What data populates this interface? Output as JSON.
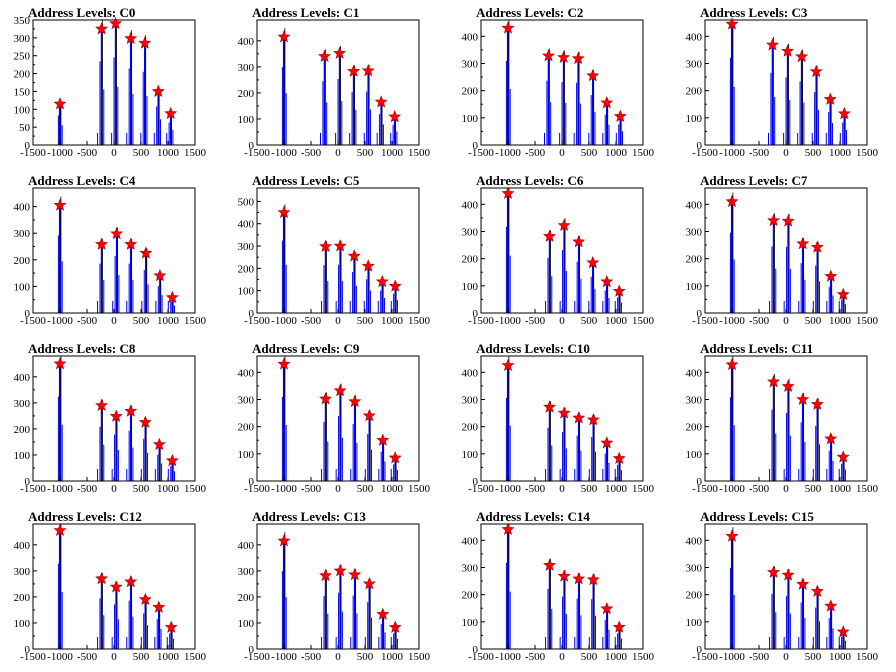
{
  "colors": {
    "histogram": "#0000ff",
    "raw": "#000000",
    "peak_marker": "#ff0000",
    "frame": "#000000"
  },
  "chart_data": [
    {
      "type": "bar",
      "title": "Address Levels: C0",
      "xlim": [
        -1500,
        1500
      ],
      "ylim": [
        0,
        350
      ],
      "yticks": [
        0,
        50,
        100,
        150,
        200,
        250,
        300,
        350
      ],
      "xticks": [
        -1500,
        -1000,
        -500,
        0,
        500,
        1000,
        1500
      ],
      "xticklabels": [
        "-1500",
        "-1000",
        "-500",
        "0",
        "500",
        "1000",
        "1500"
      ],
      "peaks": [
        {
          "x": -1000,
          "y": 115
        },
        {
          "x": -230,
          "y": 325
        },
        {
          "x": 30,
          "y": 340
        },
        {
          "x": 310,
          "y": 298
        },
        {
          "x": 570,
          "y": 285
        },
        {
          "x": 820,
          "y": 150
        },
        {
          "x": 1050,
          "y": 88
        }
      ]
    },
    {
      "type": "bar",
      "title": "Address Levels: C1",
      "xlim": [
        -1500,
        1500
      ],
      "ylim": [
        0,
        480
      ],
      "yticks": [
        0,
        100,
        200,
        300,
        400
      ],
      "xticks": [
        -1500,
        -1000,
        -500,
        0,
        500,
        1000,
        1500
      ],
      "xticklabels": [
        "-1500",
        "-1000",
        "-500",
        "0",
        "500",
        "1000",
        "1500"
      ],
      "peaks": [
        {
          "x": -1000,
          "y": 415
        },
        {
          "x": -250,
          "y": 340
        },
        {
          "x": 30,
          "y": 352
        },
        {
          "x": 290,
          "y": 283
        },
        {
          "x": 560,
          "y": 285
        },
        {
          "x": 800,
          "y": 165
        },
        {
          "x": 1050,
          "y": 108
        }
      ]
    },
    {
      "type": "bar",
      "title": "Address Levels: C2",
      "xlim": [
        -1500,
        1500
      ],
      "ylim": [
        0,
        460
      ],
      "yticks": [
        0,
        100,
        200,
        300,
        400
      ],
      "xticks": [
        -1500,
        -1000,
        -500,
        0,
        500,
        1000,
        1500
      ],
      "xticklabels": [
        "-1500",
        "-1000",
        "-500",
        "0",
        "500",
        "1000",
        "1500"
      ],
      "peaks": [
        {
          "x": -1000,
          "y": 430
        },
        {
          "x": -250,
          "y": 328
        },
        {
          "x": 30,
          "y": 322
        },
        {
          "x": 300,
          "y": 318
        },
        {
          "x": 570,
          "y": 255
        },
        {
          "x": 830,
          "y": 155
        },
        {
          "x": 1080,
          "y": 105
        }
      ]
    },
    {
      "type": "bar",
      "title": "Address Levels: C3",
      "xlim": [
        -1500,
        1500
      ],
      "ylim": [
        0,
        460
      ],
      "yticks": [
        0,
        100,
        200,
        300,
        400
      ],
      "xticks": [
        -1500,
        -1000,
        -500,
        0,
        500,
        1000,
        1500
      ],
      "xticklabels": [
        "-1500",
        "-1000",
        "-500",
        "0",
        "500",
        "1000",
        "1500"
      ],
      "peaks": [
        {
          "x": -1000,
          "y": 445
        },
        {
          "x": -250,
          "y": 368
        },
        {
          "x": 30,
          "y": 345
        },
        {
          "x": 290,
          "y": 325
        },
        {
          "x": 560,
          "y": 270
        },
        {
          "x": 820,
          "y": 168
        },
        {
          "x": 1080,
          "y": 115
        }
      ]
    },
    {
      "type": "bar",
      "title": "Address Levels: C4",
      "xlim": [
        -1500,
        1500
      ],
      "ylim": [
        0,
        470
      ],
      "yticks": [
        0,
        100,
        200,
        300,
        400
      ],
      "xticks": [
        -1500,
        -1000,
        -500,
        0,
        500,
        1000,
        1500
      ],
      "xticklabels": [
        "-1500",
        "-1000",
        "-500",
        "0",
        "500",
        "1000",
        "1500"
      ],
      "peaks": [
        {
          "x": -1000,
          "y": 405
        },
        {
          "x": -230,
          "y": 258
        },
        {
          "x": 50,
          "y": 298
        },
        {
          "x": 310,
          "y": 258
        },
        {
          "x": 590,
          "y": 225
        },
        {
          "x": 850,
          "y": 140
        },
        {
          "x": 1080,
          "y": 58
        }
      ]
    },
    {
      "type": "bar",
      "title": "Address Levels: C5",
      "xlim": [
        -1500,
        1500
      ],
      "ylim": [
        0,
        560
      ],
      "yticks": [
        0,
        100,
        200,
        300,
        400,
        500
      ],
      "xticks": [
        -1500,
        -1000,
        -500,
        0,
        500,
        1000,
        1500
      ],
      "xticklabels": [
        "-1500",
        "-1000",
        "-500",
        "0",
        "500",
        "1000",
        "1500"
      ],
      "peaks": [
        {
          "x": -1000,
          "y": 450
        },
        {
          "x": -230,
          "y": 298
        },
        {
          "x": 40,
          "y": 300
        },
        {
          "x": 300,
          "y": 255
        },
        {
          "x": 560,
          "y": 210
        },
        {
          "x": 820,
          "y": 140
        },
        {
          "x": 1060,
          "y": 120
        }
      ]
    },
    {
      "type": "bar",
      "title": "Address Levels: C6",
      "xlim": [
        -1500,
        1500
      ],
      "ylim": [
        0,
        460
      ],
      "yticks": [
        0,
        100,
        200,
        300,
        400
      ],
      "xticks": [
        -1500,
        -1000,
        -500,
        0,
        500,
        1000,
        1500
      ],
      "xticklabels": [
        "-1500",
        "-1000",
        "-500",
        "0",
        "500",
        "1000",
        "1500"
      ],
      "peaks": [
        {
          "x": -1000,
          "y": 440
        },
        {
          "x": -230,
          "y": 282
        },
        {
          "x": 40,
          "y": 322
        },
        {
          "x": 310,
          "y": 262
        },
        {
          "x": 570,
          "y": 185
        },
        {
          "x": 830,
          "y": 115
        },
        {
          "x": 1060,
          "y": 80
        }
      ]
    },
    {
      "type": "bar",
      "title": "Address Levels: C7",
      "xlim": [
        -1500,
        1500
      ],
      "ylim": [
        0,
        460
      ],
      "yticks": [
        0,
        100,
        200,
        300,
        400
      ],
      "xticks": [
        -1500,
        -1000,
        -500,
        0,
        500,
        1000,
        1500
      ],
      "xticklabels": [
        "-1500",
        "-1000",
        "-500",
        "0",
        "500",
        "1000",
        "1500"
      ],
      "peaks": [
        {
          "x": -1000,
          "y": 410
        },
        {
          "x": -230,
          "y": 340
        },
        {
          "x": 40,
          "y": 338
        },
        {
          "x": 310,
          "y": 255
        },
        {
          "x": 580,
          "y": 242
        },
        {
          "x": 830,
          "y": 135
        },
        {
          "x": 1060,
          "y": 68
        }
      ]
    },
    {
      "type": "bar",
      "title": "Address Levels: C8",
      "xlim": [
        -1500,
        1500
      ],
      "ylim": [
        0,
        480
      ],
      "yticks": [
        0,
        100,
        200,
        300,
        400
      ],
      "xticks": [
        -1500,
        -1000,
        -500,
        0,
        500,
        1000,
        1500
      ],
      "xticklabels": [
        "-1500",
        "-1000",
        "-500",
        "0",
        "500",
        "1000",
        "1500"
      ],
      "peaks": [
        {
          "x": -1000,
          "y": 450
        },
        {
          "x": -230,
          "y": 290
        },
        {
          "x": 40,
          "y": 248
        },
        {
          "x": 310,
          "y": 268
        },
        {
          "x": 580,
          "y": 225
        },
        {
          "x": 840,
          "y": 140
        },
        {
          "x": 1080,
          "y": 78
        }
      ]
    },
    {
      "type": "bar",
      "title": "Address Levels: C9",
      "xlim": [
        -1500,
        1500
      ],
      "ylim": [
        0,
        460
      ],
      "yticks": [
        0,
        100,
        200,
        300,
        400
      ],
      "xticks": [
        -1500,
        -1000,
        -500,
        0,
        500,
        1000,
        1500
      ],
      "xticklabels": [
        "-1500",
        "-1000",
        "-500",
        "0",
        "500",
        "1000",
        "1500"
      ],
      "peaks": [
        {
          "x": -1000,
          "y": 430
        },
        {
          "x": -230,
          "y": 302
        },
        {
          "x": 40,
          "y": 332
        },
        {
          "x": 310,
          "y": 292
        },
        {
          "x": 580,
          "y": 240
        },
        {
          "x": 830,
          "y": 150
        },
        {
          "x": 1060,
          "y": 85
        }
      ]
    },
    {
      "type": "bar",
      "title": "Address Levels: C10",
      "xlim": [
        -1500,
        1500
      ],
      "ylim": [
        0,
        460
      ],
      "yticks": [
        0,
        100,
        200,
        300,
        400
      ],
      "xticks": [
        -1500,
        -1000,
        -500,
        0,
        500,
        1000,
        1500
      ],
      "xticklabels": [
        "-1500",
        "-1000",
        "-500",
        "0",
        "500",
        "1000",
        "1500"
      ],
      "peaks": [
        {
          "x": -1000,
          "y": 425
        },
        {
          "x": -230,
          "y": 272
        },
        {
          "x": 40,
          "y": 250
        },
        {
          "x": 310,
          "y": 232
        },
        {
          "x": 580,
          "y": 225
        },
        {
          "x": 830,
          "y": 140
        },
        {
          "x": 1060,
          "y": 83
        }
      ]
    },
    {
      "type": "bar",
      "title": "Address Levels: C11",
      "xlim": [
        -1500,
        1500
      ],
      "ylim": [
        0,
        460
      ],
      "yticks": [
        0,
        100,
        200,
        300,
        400
      ],
      "xticks": [
        -1500,
        -1000,
        -500,
        0,
        500,
        1000,
        1500
      ],
      "xticklabels": [
        "-1500",
        "-1000",
        "-500",
        "0",
        "500",
        "1000",
        "1500"
      ],
      "peaks": [
        {
          "x": -1000,
          "y": 428
        },
        {
          "x": -230,
          "y": 365
        },
        {
          "x": 40,
          "y": 348
        },
        {
          "x": 310,
          "y": 300
        },
        {
          "x": 580,
          "y": 282
        },
        {
          "x": 830,
          "y": 155
        },
        {
          "x": 1060,
          "y": 88
        }
      ]
    },
    {
      "type": "bar",
      "title": "Address Levels: C12",
      "xlim": [
        -1500,
        1500
      ],
      "ylim": [
        0,
        480
      ],
      "yticks": [
        0,
        100,
        200,
        300,
        400
      ],
      "xticks": [
        -1500,
        -1000,
        -500,
        0,
        500,
        1000,
        1500
      ],
      "xticklabels": [
        "-1500",
        "-1000",
        "-500",
        "0",
        "500",
        "1000",
        "1500"
      ],
      "peaks": [
        {
          "x": -1000,
          "y": 455
        },
        {
          "x": -230,
          "y": 270
        },
        {
          "x": 40,
          "y": 238
        },
        {
          "x": 310,
          "y": 258
        },
        {
          "x": 580,
          "y": 190
        },
        {
          "x": 830,
          "y": 160
        },
        {
          "x": 1060,
          "y": 83
        }
      ]
    },
    {
      "type": "bar",
      "title": "Address Levels: C13",
      "xlim": [
        -1500,
        1500
      ],
      "ylim": [
        0,
        480
      ],
      "yticks": [
        0,
        100,
        200,
        300,
        400
      ],
      "xticks": [
        -1500,
        -1000,
        -500,
        0,
        500,
        1000,
        1500
      ],
      "xticklabels": [
        "-1500",
        "-1000",
        "-500",
        "0",
        "500",
        "1000",
        "1500"
      ],
      "peaks": [
        {
          "x": -1000,
          "y": 415
        },
        {
          "x": -230,
          "y": 282
        },
        {
          "x": 40,
          "y": 300
        },
        {
          "x": 310,
          "y": 285
        },
        {
          "x": 580,
          "y": 250
        },
        {
          "x": 830,
          "y": 133
        },
        {
          "x": 1060,
          "y": 83
        }
      ]
    },
    {
      "type": "bar",
      "title": "Address Levels: C14",
      "xlim": [
        -1500,
        1500
      ],
      "ylim": [
        0,
        460
      ],
      "yticks": [
        0,
        100,
        200,
        300,
        400
      ],
      "xticks": [
        -1500,
        -1000,
        -500,
        0,
        500,
        1000,
        1500
      ],
      "xticklabels": [
        "-1500",
        "-1000",
        "-500",
        "0",
        "500",
        "1000",
        "1500"
      ],
      "peaks": [
        {
          "x": -1000,
          "y": 440
        },
        {
          "x": -230,
          "y": 308
        },
        {
          "x": 40,
          "y": 268
        },
        {
          "x": 310,
          "y": 258
        },
        {
          "x": 580,
          "y": 255
        },
        {
          "x": 830,
          "y": 148
        },
        {
          "x": 1060,
          "y": 80
        }
      ]
    },
    {
      "type": "bar",
      "title": "Address Levels: C15",
      "xlim": [
        -1500,
        1500
      ],
      "ylim": [
        0,
        460
      ],
      "yticks": [
        0,
        100,
        200,
        300,
        400
      ],
      "xticks": [
        -1500,
        -1000,
        -500,
        0,
        500,
        1000,
        1500
      ],
      "xticklabels": [
        "-1500",
        "-1000",
        "-500",
        "0",
        "500",
        "1000",
        "1500"
      ],
      "peaks": [
        {
          "x": -1000,
          "y": 415
        },
        {
          "x": -230,
          "y": 282
        },
        {
          "x": 40,
          "y": 272
        },
        {
          "x": 310,
          "y": 238
        },
        {
          "x": 580,
          "y": 212
        },
        {
          "x": 830,
          "y": 158
        },
        {
          "x": 1060,
          "y": 63
        }
      ]
    }
  ]
}
